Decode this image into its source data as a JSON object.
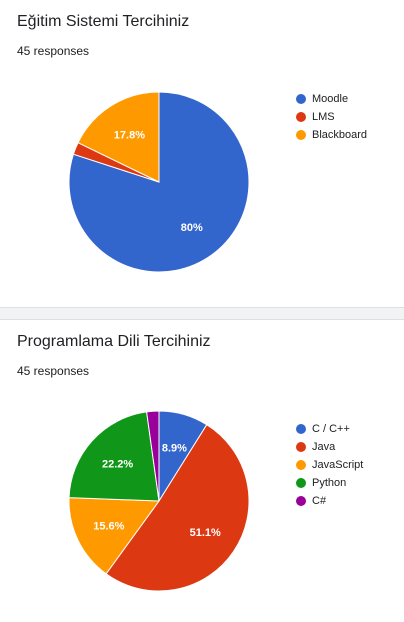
{
  "chart_data": [
    {
      "type": "pie",
      "title": "Eğitim Sistemi Tercihiniz",
      "subtitle": "45 responses",
      "legend_position": "right",
      "slices": [
        {
          "name": "Moodle",
          "value": 80.0,
          "color": "#3366cc",
          "label": "80%"
        },
        {
          "name": "LMS",
          "value": 2.2,
          "color": "#dc3912",
          "label": ""
        },
        {
          "name": "Blackboard",
          "value": 17.8,
          "color": "#ff9900",
          "label": "17.8%"
        }
      ]
    },
    {
      "type": "pie",
      "title": "Programlama Dili Tercihiniz",
      "subtitle": "45 responses",
      "legend_position": "right",
      "slices": [
        {
          "name": "C / C++",
          "value": 8.9,
          "color": "#3366cc",
          "label": "8.9%"
        },
        {
          "name": "Java",
          "value": 51.1,
          "color": "#dc3912",
          "label": "51.1%"
        },
        {
          "name": "JavaScript",
          "value": 15.6,
          "color": "#ff9900",
          "label": "15.6%"
        },
        {
          "name": "Python",
          "value": 22.2,
          "color": "#109618",
          "label": "22.2%"
        },
        {
          "name": "C#",
          "value": 2.2,
          "color": "#990099",
          "label": ""
        }
      ]
    }
  ]
}
